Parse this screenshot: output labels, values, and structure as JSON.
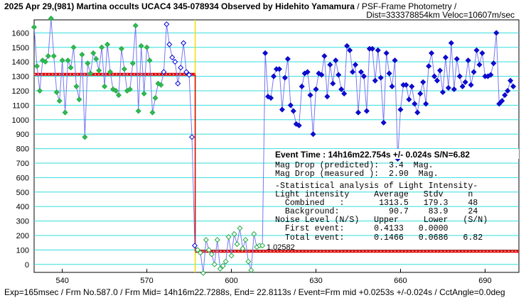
{
  "chart_data": {
    "type": "line",
    "title": "2025 Apr 29,(981) Martina occults UCAC4 345-078934 Observed by Hidehito Yamamura",
    "title_suffix": " / PSF-Frame Photometry /",
    "subtitle": "Dist=333378854km Veloc=10607m/sec",
    "footer": "Exp=165msec / Frm No.587.0 / Frm Mid= 14h16m22.7288s,  End= 22.8113s / Event=Frm mid +0.0253s +/-0.024s / CctAngle=0.0deg",
    "event_line": "Event Time : 14h16m22.754s  +/- 0.024s  S/N=6.82",
    "stats": [
      "Mag Drop (predicted):  3.4  Mag.",
      "Mag Drop (measured ):  2.90  Mag.",
      "-Statistical analysis of Light Intensity-",
      "Light intensity     Average   Stdv     n",
      "  Combined   :       1313.5   179.3    48",
      "  Background:          90.7    83.9    24",
      "Noise Level (N/S)   Upper     Lower   (S/N)",
      "  First event:      0.4133   0.0000",
      "  Total event:      0.1466   0.0686   6.82"
    ],
    "annotation": "1.02582",
    "xlim": [
      530,
      702
    ],
    "ylim": [
      -55,
      1690
    ],
    "xticks": [
      540,
      570,
      600,
      630,
      660,
      690
    ],
    "yticks": [
      0,
      100,
      200,
      300,
      400,
      500,
      600,
      700,
      800,
      900,
      1000,
      1100,
      1200,
      1300,
      1400,
      1500,
      1600
    ],
    "grid": true,
    "grid_color": "#33dddd",
    "line_color": "#7878f0",
    "event_x": 587.15,
    "event_color": "#f0e000",
    "level_color": "#dd0000",
    "levels": [
      {
        "value": 1313.5,
        "from": 530,
        "to": 587.15
      },
      {
        "value": 90.7,
        "from": 587.15,
        "to": 702
      }
    ],
    "series": [
      {
        "color": "#22aa44",
        "fill": "#33bb55",
        "x": [
          530,
          531,
          532,
          533,
          534,
          535,
          536,
          537,
          538,
          539,
          540,
          541,
          542,
          543,
          544,
          545,
          546,
          547,
          548,
          549,
          550,
          551,
          552,
          553,
          554,
          555,
          556,
          557,
          558,
          559,
          560,
          561,
          562,
          563,
          564,
          565,
          566,
          567,
          568,
          569,
          570,
          571,
          572,
          573,
          574,
          575
        ],
        "values": [
          1640,
          1370,
          1200,
          1410,
          1400,
          1440,
          1700,
          1440,
          1190,
          1130,
          1410,
          1050,
          1410,
          1360,
          1500,
          1230,
          1140,
          1450,
          880,
          1390,
          1320,
          1460,
          1420,
          1340,
          1500,
          1230,
          1520,
          1330,
          1210,
          1200,
          1170,
          1490,
          1350,
          1200,
          1210,
          1390,
          1650,
          1060,
          1510,
          1180,
          1500,
          1410,
          1050,
          1150,
          1250,
          1240
        ]
      },
      {
        "color": "#0000dd",
        "fill": "#ffffff",
        "x": [
          576,
          577,
          578,
          579,
          580,
          581,
          582,
          583,
          584,
          585,
          586,
          587
        ],
        "values": [
          1330,
          1660,
          1520,
          1430,
          1400,
          1250,
          1360,
          1530,
          1330,
          1310,
          880,
          130
        ]
      },
      {
        "color": "#22aa44",
        "fill": "#ffffff",
        "x": [
          588,
          589,
          590,
          591,
          592,
          593,
          594,
          595,
          596,
          597,
          598,
          599,
          600,
          601,
          602,
          603,
          604,
          605,
          606,
          607,
          608,
          609,
          610,
          611
        ],
        "values": [
          100,
          80,
          -60,
          170,
          100,
          70,
          0,
          170,
          -30,
          -10,
          20,
          190,
          60,
          210,
          140,
          250,
          110,
          170,
          20,
          -40,
          210,
          120,
          130,
          130
        ]
      },
      {
        "color": "#0000cc",
        "fill": "#1010cc",
        "x": [
          612,
          613,
          614,
          615,
          616,
          617,
          618,
          619,
          620,
          621,
          622,
          623,
          624,
          625,
          626,
          627,
          628,
          629,
          630,
          631,
          632,
          633,
          634,
          635,
          636,
          637,
          638,
          639,
          640,
          641,
          642,
          643,
          644,
          645,
          646,
          647,
          648,
          649,
          650,
          651,
          652,
          653,
          654,
          655,
          656,
          657,
          658,
          659,
          660,
          661,
          662,
          663,
          664,
          665,
          666,
          667,
          668,
          669,
          670,
          671,
          672,
          673,
          674,
          675,
          676,
          677,
          678,
          679,
          680,
          681,
          682,
          683,
          684,
          685,
          686,
          687,
          688,
          689,
          690,
          691,
          692,
          693,
          694,
          695,
          696,
          697,
          698,
          699,
          700
        ],
        "values": [
          1460,
          1160,
          1150,
          1300,
          1350,
          1350,
          1070,
          1290,
          1420,
          1100,
          1060,
          970,
          960,
          1230,
          1320,
          1330,
          1170,
          900,
          1210,
          1320,
          1310,
          1440,
          1160,
          1380,
          1250,
          1410,
          1310,
          1210,
          1180,
          1510,
          1480,
          1330,
          1380,
          1050,
          1330,
          1300,
          1060,
          1490,
          1490,
          1270,
          1480,
          1290,
          980,
          1460,
          1320,
          1230,
          1410,
          730,
          1070,
          1240,
          1240,
          1140,
          1230,
          1110,
          1050,
          1180,
          1260,
          1110,
          1370,
          1460,
          1300,
          1270,
          1340,
          1190,
          1430,
          1220,
          1530,
          1210,
          1420,
          1300,
          1230,
          1260,
          1410,
          1240,
          1330,
          1480,
          1380,
          1460,
          1300,
          1300,
          1310,
          1390,
          1600,
          1110,
          1130,
          1170,
          1200,
          1270,
          1230
        ]
      }
    ]
  }
}
